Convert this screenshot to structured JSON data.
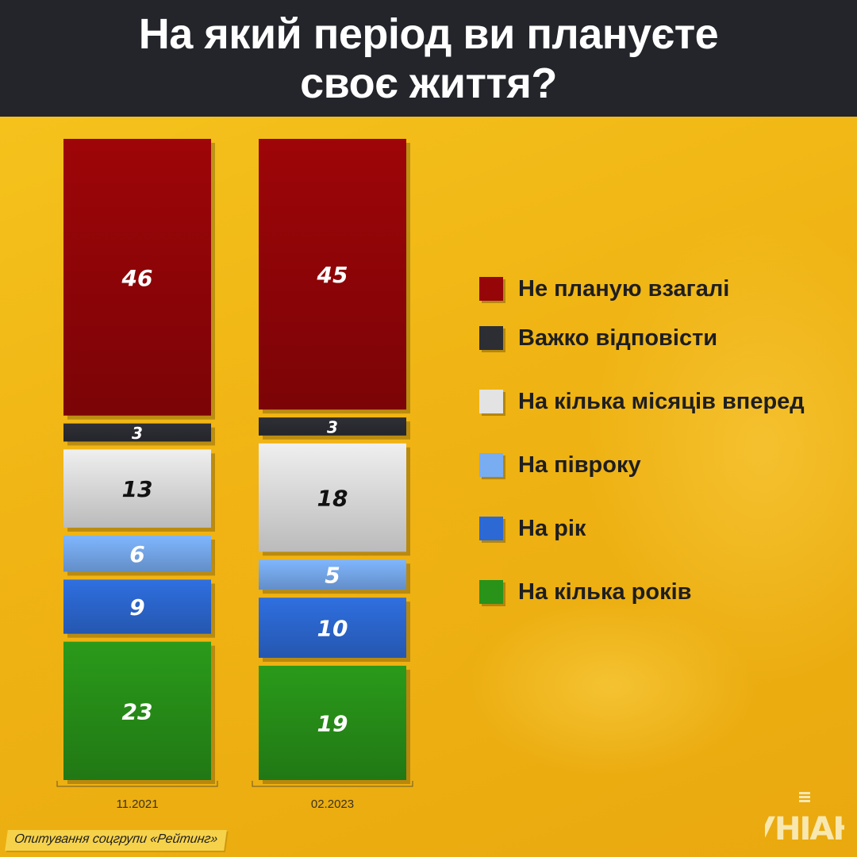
{
  "title": "На який період ви плануєте своє життя?",
  "colors": {
    "header_bg": "#23252b",
    "background": "#f2b817",
    "categories": [
      "#9e0508",
      "#2e3036",
      "#efefef",
      "#7fb6ff",
      "#2f6fe0",
      "#2a9a1a"
    ],
    "label_text": [
      "#ffffff",
      "#ffffff",
      "#111111",
      "#ffffff",
      "#ffffff",
      "#ffffff"
    ]
  },
  "chart_data": {
    "type": "bar",
    "stacked": true,
    "categories": [
      "11.2021",
      "02.2023"
    ],
    "series": [
      {
        "name": "Не планую взагалі",
        "values": [
          46,
          45
        ]
      },
      {
        "name": "Важко відповісти",
        "values": [
          3,
          3
        ]
      },
      {
        "name": "На кілька місяців вперед",
        "values": [
          13,
          18
        ]
      },
      {
        "name": "На півроку",
        "values": [
          6,
          5
        ]
      },
      {
        "name": "На рік",
        "values": [
          9,
          10
        ]
      },
      {
        "name": "На кілька років",
        "values": [
          23,
          19
        ]
      }
    ],
    "title": "На який період ви плануєте своє життя?",
    "xlabel": "",
    "ylabel": "",
    "ylim": [
      0,
      100
    ],
    "legend": "right"
  },
  "source_note": "Опитування соцгрупи «Рейтинг»",
  "logo": {
    "icon": "unian-logo",
    "text": "УНІАН"
  }
}
